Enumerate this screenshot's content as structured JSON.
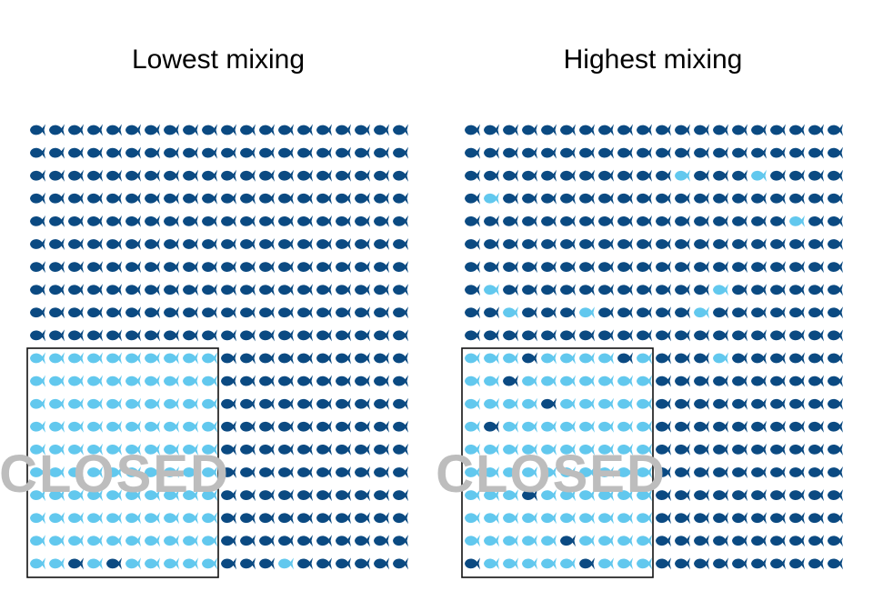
{
  "colors": {
    "outside_fish": "#0b4a82",
    "inside_fish": "#62c8ee",
    "closed_text": "#bdbdbd",
    "box_stroke": "#111111"
  },
  "fish_icon": "fish-icon",
  "grid": {
    "rows": 20,
    "cols": 20,
    "closed_rows": 10,
    "closed_cols": 10
  },
  "panels": [
    {
      "id": "lowest",
      "title": "Lowest mixing",
      "closed_label": "CLOSED",
      "swapped_in_closed": [
        [
          19,
          2
        ],
        [
          19,
          4
        ]
      ],
      "swapped_outside": [
        [
          19,
          13
        ]
      ]
    },
    {
      "id": "highest",
      "title": "Highest mixing",
      "closed_label": "CLOSED",
      "swapped_in_closed": [
        [
          10,
          3
        ],
        [
          10,
          8
        ],
        [
          11,
          2
        ],
        [
          12,
          4
        ],
        [
          13,
          1
        ],
        [
          16,
          3
        ],
        [
          18,
          5
        ],
        [
          19,
          0
        ],
        [
          19,
          6
        ]
      ],
      "swapped_outside": [
        [
          2,
          11
        ],
        [
          2,
          15
        ],
        [
          3,
          1
        ],
        [
          4,
          17
        ],
        [
          7,
          1
        ],
        [
          7,
          13
        ],
        [
          8,
          2
        ],
        [
          8,
          6
        ],
        [
          8,
          12
        ],
        [
          10,
          13
        ]
      ]
    }
  ]
}
